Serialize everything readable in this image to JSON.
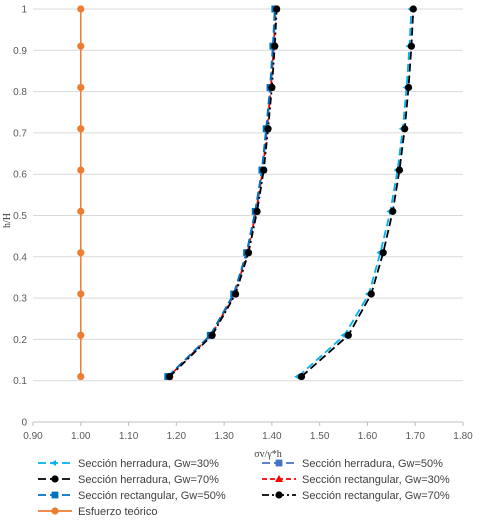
{
  "chart_data": {
    "type": "line",
    "title": "",
    "xlabel": "σv/γ*h",
    "ylabel": "h/H",
    "xlim": [
      0.9,
      1.8
    ],
    "ylim": [
      0,
      1
    ],
    "x_ticks": [
      "0.90",
      "1.00",
      "1.10",
      "1.20",
      "1.30",
      "1.40",
      "1.50",
      "1.60",
      "1.70",
      "1.80"
    ],
    "y_ticks": [
      "0",
      "0.1",
      "0.2",
      "0.3",
      "0.4",
      "0.5",
      "0.6",
      "0.7",
      "0.8",
      "0.9",
      "1"
    ],
    "grid": "horizontal",
    "legend_position": "bottom",
    "y": [
      0.11,
      0.21,
      0.31,
      0.41,
      0.51,
      0.61,
      0.71,
      0.81,
      0.91,
      1.0
    ],
    "series": [
      {
        "name": "Sección herradura, Gw=30%",
        "color": "#00b0f0",
        "dash": "long-dash",
        "marker": "arrow",
        "x": [
          1.455,
          1.552,
          1.603,
          1.627,
          1.648,
          1.663,
          1.674,
          1.682,
          1.688,
          1.692
        ]
      },
      {
        "name": "Sección herradura, Gw=50%",
        "color": "#4472c4",
        "dash": "long-dash",
        "marker": "square",
        "x": [
          1.183,
          1.272,
          1.321,
          1.348,
          1.366,
          1.38,
          1.389,
          1.397,
          1.403,
          1.407
        ]
      },
      {
        "name": "Sección herradura, Gw=70%",
        "color": "#000000",
        "dash": "long-dash",
        "marker": "circle",
        "x": [
          1.462,
          1.56,
          1.608,
          1.633,
          1.653,
          1.667,
          1.678,
          1.686,
          1.692,
          1.696
        ]
      },
      {
        "name": "Sección rectangular, Gw=30%",
        "color": "#ff0000",
        "dash": "dash",
        "marker": "triangle",
        "x": [
          1.184,
          1.273,
          1.322,
          1.349,
          1.367,
          1.381,
          1.39,
          1.398,
          1.404,
          1.408
        ]
      },
      {
        "name": "Sección rectangular, Gw=50%",
        "color": "#0070c0",
        "dash": "long-dash",
        "marker": "square",
        "x": [
          1.182,
          1.271,
          1.32,
          1.347,
          1.365,
          1.379,
          1.388,
          1.396,
          1.402,
          1.406
        ]
      },
      {
        "name": "Sección rectangular, Gw=70%",
        "color": "#000000",
        "dash": "dash-dot",
        "marker": "circle",
        "x": [
          1.186,
          1.275,
          1.324,
          1.351,
          1.369,
          1.383,
          1.392,
          1.4,
          1.406,
          1.41
        ]
      },
      {
        "name": "Esfuerzo teórico",
        "color": "#ed7d31",
        "dash": "solid",
        "marker": "circle",
        "x": [
          1.0,
          1.0,
          1.0,
          1.0,
          1.0,
          1.0,
          1.0,
          1.0,
          1.0,
          1.0
        ]
      }
    ]
  }
}
